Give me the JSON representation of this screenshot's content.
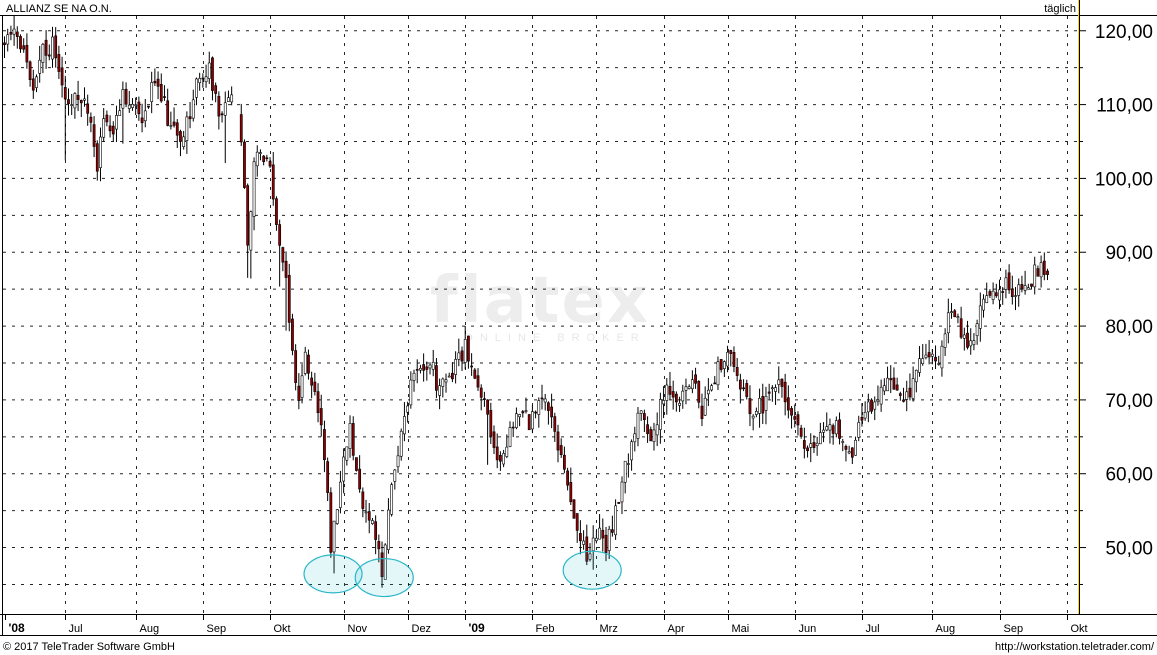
{
  "header": {
    "instrument": "ALLIANZ SE NA O.N.",
    "interval": "täglich"
  },
  "footer": {
    "copyright": "© 2017 TeleTrader Software GmbH",
    "url": "http://workstation.teletrader.com/"
  },
  "watermark": {
    "logo": "flatex",
    "tagline": "ONLINE BROKER"
  },
  "colors": {
    "up": "#ffffff",
    "down": "#8b0000",
    "highlight": "#2ab7c9",
    "gridline": "#000000",
    "right_axis_line": "#ffd700"
  },
  "chart_data": {
    "type": "candlestick",
    "title": "ALLIANZ SE NA O.N.",
    "interval": "täglich",
    "ylim": [
      41,
      122
    ],
    "grid": true,
    "y_ticks": [
      {
        "value": 120,
        "label": "120,00"
      },
      {
        "value": 110,
        "label": "110,00"
      },
      {
        "value": 100,
        "label": "100,00"
      },
      {
        "value": 90,
        "label": "90,00"
      },
      {
        "value": 80,
        "label": "80,00"
      },
      {
        "value": 70,
        "label": "70,00"
      },
      {
        "value": 60,
        "label": "60,00"
      },
      {
        "value": 50,
        "label": "50,00"
      }
    ],
    "x_ticks": [
      {
        "label": "'08",
        "i": 0,
        "bold": true
      },
      {
        "label": "Jul",
        "i": 19,
        "bold": false
      },
      {
        "label": "Aug",
        "i": 41,
        "bold": false
      },
      {
        "label": "Sep",
        "i": 62,
        "bold": false
      },
      {
        "label": "Okt",
        "i": 83,
        "bold": false
      },
      {
        "label": "Nov",
        "i": 106,
        "bold": false
      },
      {
        "label": "Dez",
        "i": 126,
        "bold": false
      },
      {
        "label": "'09",
        "i": 144,
        "bold": true
      },
      {
        "label": "Feb",
        "i": 165,
        "bold": false
      },
      {
        "label": "Mrz",
        "i": 185,
        "bold": false
      },
      {
        "label": "Apr",
        "i": 206,
        "bold": false
      },
      {
        "label": "Mai",
        "i": 226,
        "bold": false
      },
      {
        "label": "Jun",
        "i": 247,
        "bold": false
      },
      {
        "label": "Jul",
        "i": 268,
        "bold": false
      },
      {
        "label": "Aug",
        "i": 290,
        "bold": false
      },
      {
        "label": "Sep",
        "i": 311,
        "bold": false
      },
      {
        "label": "Okt",
        "i": 332,
        "bold": false
      }
    ],
    "anchors": [
      [
        0,
        119
      ],
      [
        3,
        121
      ],
      [
        6,
        117
      ],
      [
        9,
        112
      ],
      [
        12,
        117
      ],
      [
        15,
        118
      ],
      [
        18,
        113
      ],
      [
        21,
        110
      ],
      [
        24,
        111
      ],
      [
        27,
        107
      ],
      [
        29,
        102
      ],
      [
        31,
        109
      ],
      [
        34,
        106
      ],
      [
        37,
        112
      ],
      [
        40,
        110
      ],
      [
        43,
        107
      ],
      [
        46,
        113
      ],
      [
        49,
        111
      ],
      [
        52,
        107
      ],
      [
        55,
        105
      ],
      [
        58,
        109
      ],
      [
        61,
        114
      ],
      [
        64,
        115
      ],
      [
        66,
        111
      ],
      [
        68,
        108
      ],
      [
        70,
        111
      ],
      [
        72,
        110
      ],
      [
        74,
        104
      ],
      [
        76,
        91
      ],
      [
        78,
        101
      ],
      [
        80,
        104
      ],
      [
        82,
        103
      ],
      [
        84,
        98
      ],
      [
        86,
        92
      ],
      [
        88,
        86
      ],
      [
        90,
        76
      ],
      [
        92,
        70
      ],
      [
        94,
        77
      ],
      [
        96,
        72
      ],
      [
        98,
        69
      ],
      [
        100,
        63
      ],
      [
        102,
        50
      ],
      [
        104,
        56
      ],
      [
        106,
        62
      ],
      [
        108,
        67
      ],
      [
        110,
        60
      ],
      [
        112,
        56
      ],
      [
        114,
        53
      ],
      [
        116,
        52
      ],
      [
        118,
        46
      ],
      [
        120,
        55
      ],
      [
        122,
        60
      ],
      [
        124,
        65
      ],
      [
        126,
        70
      ],
      [
        128,
        74
      ],
      [
        130,
        75
      ],
      [
        132,
        73
      ],
      [
        134,
        74
      ],
      [
        136,
        71
      ],
      [
        138,
        73
      ],
      [
        140,
        74
      ],
      [
        142,
        76
      ],
      [
        144,
        77
      ],
      [
        146,
        74
      ],
      [
        148,
        71
      ],
      [
        150,
        69
      ],
      [
        152,
        66
      ],
      [
        154,
        63
      ],
      [
        156,
        62
      ],
      [
        158,
        65
      ],
      [
        160,
        68
      ],
      [
        162,
        69
      ],
      [
        164,
        66
      ],
      [
        166,
        69
      ],
      [
        168,
        70
      ],
      [
        170,
        69
      ],
      [
        172,
        66
      ],
      [
        174,
        63
      ],
      [
        176,
        58
      ],
      [
        178,
        54
      ],
      [
        180,
        52
      ],
      [
        182,
        49
      ],
      [
        184,
        50
      ],
      [
        186,
        52
      ],
      [
        188,
        50
      ],
      [
        190,
        53
      ],
      [
        192,
        57
      ],
      [
        194,
        61
      ],
      [
        196,
        64
      ],
      [
        198,
        67
      ],
      [
        200,
        68
      ],
      [
        202,
        64
      ],
      [
        204,
        67
      ],
      [
        206,
        71
      ],
      [
        208,
        72
      ],
      [
        210,
        71
      ],
      [
        212,
        70
      ],
      [
        214,
        72
      ],
      [
        216,
        71
      ],
      [
        218,
        68
      ],
      [
        220,
        72
      ],
      [
        222,
        73
      ],
      [
        224,
        75
      ],
      [
        226,
        77
      ],
      [
        228,
        74
      ],
      [
        230,
        71
      ],
      [
        232,
        70
      ],
      [
        234,
        68
      ],
      [
        236,
        69
      ],
      [
        238,
        70
      ],
      [
        240,
        71
      ],
      [
        242,
        72
      ],
      [
        244,
        70
      ],
      [
        246,
        68
      ],
      [
        248,
        66
      ],
      [
        250,
        64
      ],
      [
        252,
        64
      ],
      [
        254,
        65
      ],
      [
        256,
        66
      ],
      [
        258,
        67
      ],
      [
        260,
        66
      ],
      [
        262,
        64
      ],
      [
        264,
        62
      ],
      [
        266,
        65
      ],
      [
        268,
        67
      ],
      [
        270,
        69
      ],
      [
        272,
        70
      ],
      [
        274,
        71
      ],
      [
        276,
        72
      ],
      [
        278,
        72
      ],
      [
        280,
        71
      ],
      [
        282,
        70
      ],
      [
        284,
        73
      ],
      [
        286,
        75
      ],
      [
        288,
        77
      ],
      [
        290,
        76
      ],
      [
        292,
        75
      ],
      [
        294,
        80
      ],
      [
        296,
        82
      ],
      [
        298,
        80
      ],
      [
        300,
        78
      ],
      [
        302,
        77
      ],
      [
        304,
        80
      ],
      [
        306,
        83
      ],
      [
        308,
        84
      ],
      [
        310,
        83
      ],
      [
        312,
        85
      ],
      [
        314,
        86
      ],
      [
        316,
        84
      ],
      [
        318,
        85
      ],
      [
        320,
        86
      ],
      [
        322,
        87
      ],
      [
        324,
        88
      ],
      [
        326,
        88
      ]
    ],
    "highlights": [
      {
        "i": 103,
        "low": 46.5
      },
      {
        "i": 119,
        "low": 46.0
      },
      {
        "i": 184,
        "low": 47.0
      }
    ]
  }
}
